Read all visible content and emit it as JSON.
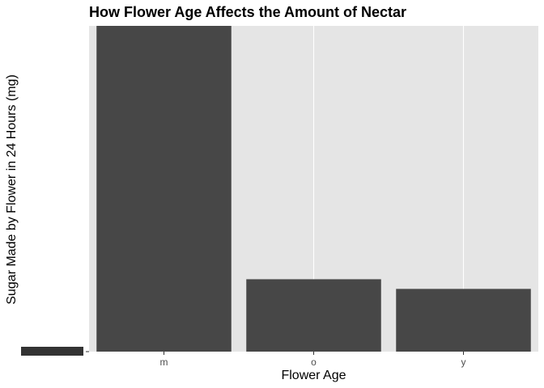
{
  "chart_data": {
    "type": "bar",
    "title": "How Flower Age Affects the Amount of Nectar",
    "xlabel": "Flower Age",
    "ylabel": "Sugar Made by Flower in 24 Hours (mg)",
    "categories": [
      "m",
      "o",
      "y"
    ],
    "values": [
      13.5,
      3.0,
      2.6
    ],
    "ylim": [
      0,
      13.5
    ],
    "bar_color": "#474747",
    "panel_background": "#e5e5e5",
    "grid": true,
    "legend": "none"
  }
}
